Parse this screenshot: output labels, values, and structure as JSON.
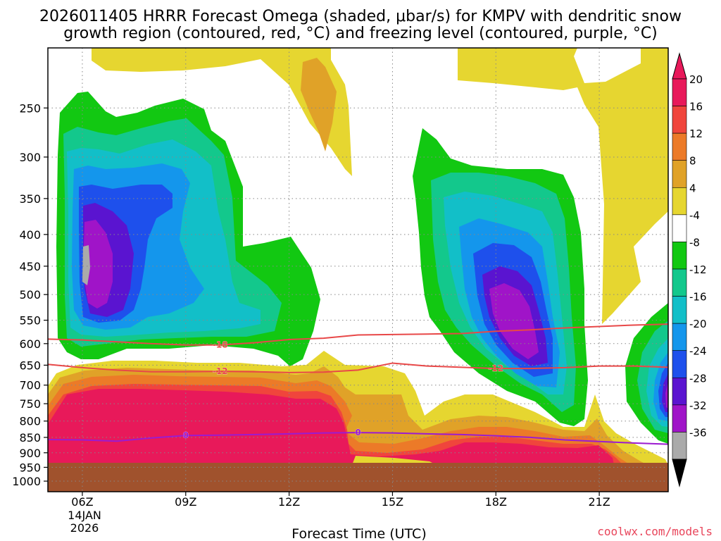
{
  "chart_data": {
    "type": "heatmap",
    "title_line1": "2026011405 HRRR Forecast Omega (shaded, μbar/s) for KMPV with dendritic snow",
    "title_line2": "growth region (contoured, red, °C) and freezing level (contoured, purple, °C)",
    "xlabel": "Forecast Time (UTC)",
    "ylabel": "",
    "x_ticks": [
      "06Z",
      "09Z",
      "12Z",
      "15Z",
      "18Z",
      "21Z"
    ],
    "x_tick_hours": [
      6,
      9,
      12,
      15,
      18,
      21
    ],
    "x_range_hours": [
      5,
      23
    ],
    "date_label_line1": "14JAN",
    "date_label_line2": "2026",
    "y_ticks": [
      "250",
      "300",
      "350",
      "400",
      "450",
      "500",
      "550",
      "600",
      "650",
      "700",
      "750",
      "800",
      "850",
      "900",
      "950",
      "1000"
    ],
    "y_tick_values": [
      250,
      300,
      350,
      400,
      450,
      500,
      550,
      600,
      650,
      700,
      750,
      800,
      850,
      900,
      950,
      1000
    ],
    "y_range_mb": [
      200,
      1040
    ],
    "y_reversed": true,
    "grid": true,
    "ground_level_mb": 950,
    "colorbar": {
      "labels": [
        "20",
        "16",
        "12",
        "8",
        "4",
        "-4",
        "-8",
        "-12",
        "-16",
        "-20",
        "-24",
        "-28",
        "-32",
        "-36"
      ],
      "colors": [
        "#e8195a",
        "#f0453c",
        "#ec7a28",
        "#e0a228",
        "#e6d630",
        "#ffffff",
        "#12c812",
        "#13c88c",
        "#12bfc8",
        "#1496ec",
        "#1e50ec",
        "#5a14d0",
        "#a014c8",
        "#aaaaaa"
      ],
      "top_arrow_color": "#e8195a",
      "bottom_arrow_color": "#000000"
    },
    "omega_levels": [
      -36,
      -32,
      -28,
      -24,
      -20,
      -16,
      -12,
      -8,
      -4,
      4,
      8,
      12,
      16,
      20
    ],
    "contours": [
      {
        "label": "-18",
        "color": "#e84848",
        "points": [
          [
            5.0,
            590
          ],
          [
            6.0,
            592
          ],
          [
            7.0,
            596
          ],
          [
            8.0,
            600
          ],
          [
            9.0,
            603
          ],
          [
            10.0,
            603
          ],
          [
            11.0,
            598
          ],
          [
            12.0,
            591
          ],
          [
            13.0,
            588
          ],
          [
            14.0,
            581
          ],
          [
            15.0,
            580
          ],
          [
            16.0,
            579
          ],
          [
            17.0,
            578
          ],
          [
            18.0,
            573
          ],
          [
            19.0,
            570
          ],
          [
            20.0,
            566
          ],
          [
            21.0,
            563
          ],
          [
            22.0,
            560
          ],
          [
            23.0,
            558
          ]
        ]
      },
      {
        "label": "-12",
        "color": "#e84848",
        "points": [
          [
            5.0,
            648
          ],
          [
            6.0,
            656
          ],
          [
            7.0,
            662
          ],
          [
            8.0,
            666
          ],
          [
            9.0,
            666
          ],
          [
            10.0,
            665
          ],
          [
            11.0,
            666
          ],
          [
            12.0,
            668
          ],
          [
            13.0,
            667
          ],
          [
            14.0,
            662
          ],
          [
            15.0,
            645
          ],
          [
            16.0,
            652
          ],
          [
            17.0,
            655
          ],
          [
            18.0,
            658
          ],
          [
            19.0,
            658
          ],
          [
            20.0,
            656
          ],
          [
            21.0,
            652
          ],
          [
            22.0,
            652
          ],
          [
            23.0,
            655
          ]
        ]
      },
      {
        "label": "0",
        "color": "#9b1bd0",
        "points": [
          [
            5.0,
            857
          ],
          [
            6.0,
            858
          ],
          [
            7.0,
            862
          ],
          [
            8.0,
            852
          ],
          [
            9.0,
            844
          ],
          [
            10.0,
            843
          ],
          [
            11.0,
            841
          ],
          [
            12.0,
            839
          ],
          [
            13.0,
            836
          ],
          [
            14.0,
            835
          ],
          [
            15.0,
            836
          ],
          [
            16.0,
            839
          ],
          [
            17.0,
            841
          ],
          [
            18.0,
            845
          ],
          [
            19.0,
            850
          ],
          [
            20.0,
            858
          ],
          [
            21.0,
            863
          ],
          [
            22.0,
            868
          ],
          [
            23.0,
            872
          ]
        ]
      }
    ]
  },
  "credit": "coolwx.com/models"
}
